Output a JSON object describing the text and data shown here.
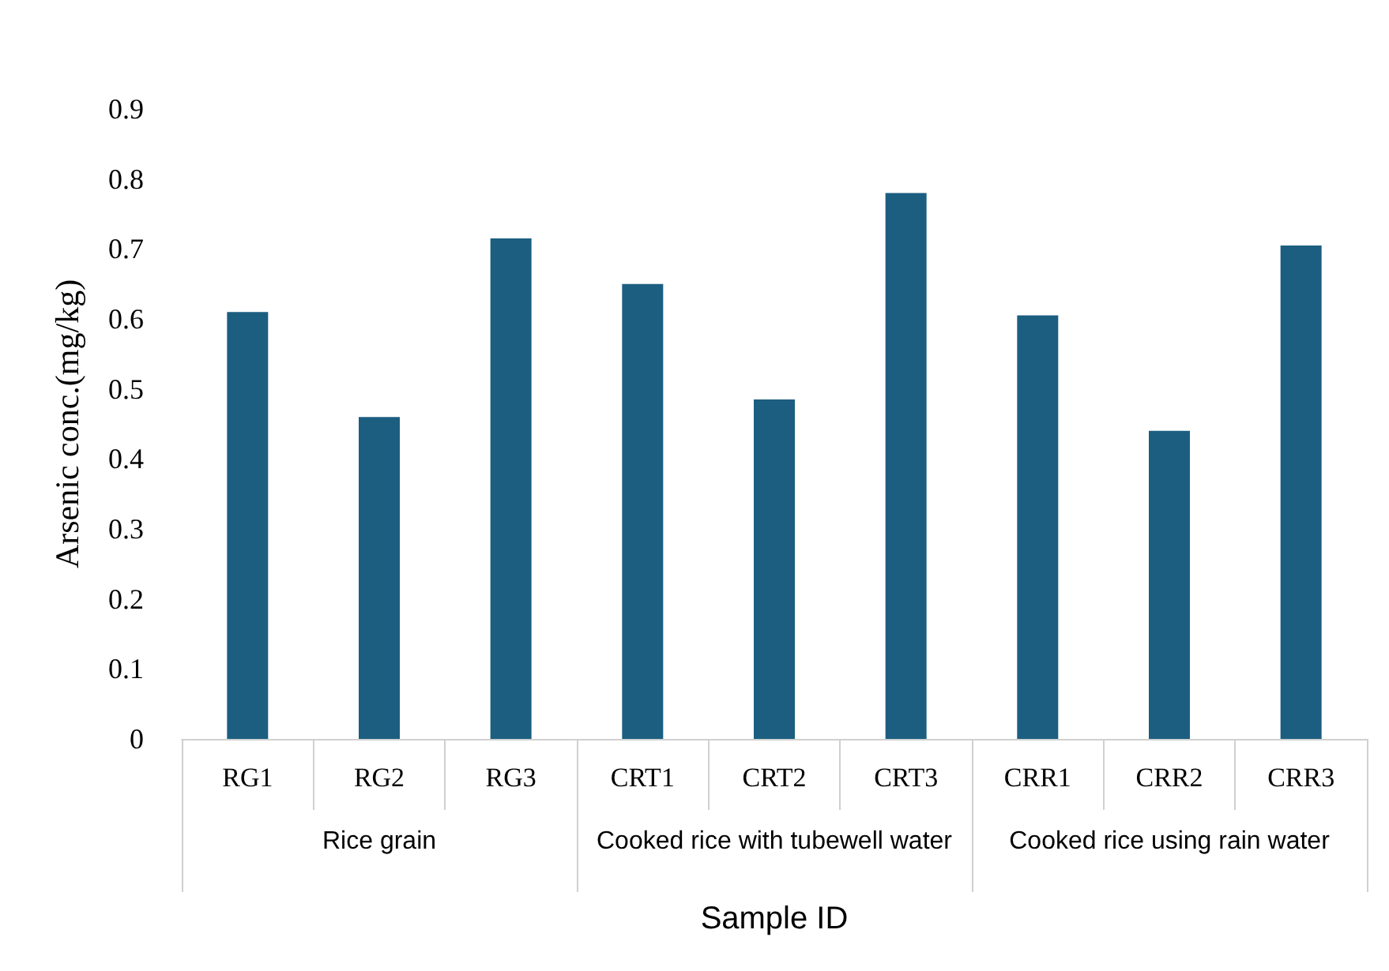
{
  "chart_data": {
    "type": "bar",
    "xlabel": "Sample ID",
    "ylabel": "Arsenic conc.(mg/kg)",
    "categories": [
      "RG1",
      "RG2",
      "RG3",
      "CRT1",
      "CRT2",
      "CRT3",
      "CRR1",
      "CRR2",
      "CRR3"
    ],
    "values": [
      0.61,
      0.46,
      0.715,
      0.65,
      0.485,
      0.78,
      0.605,
      0.44,
      0.705
    ],
    "color": "#1b5e80",
    "annotations": [
      "Rice grain",
      "Cooked rice with tubewell water",
      "Cooked rice using rain water"
    ],
    "ylim": [
      0,
      0.9
    ],
    "yticks": [
      0,
      0.1,
      0.2,
      0.3,
      0.4,
      0.5,
      0.6,
      0.7,
      0.8,
      0.9
    ],
    "grid": false
  }
}
